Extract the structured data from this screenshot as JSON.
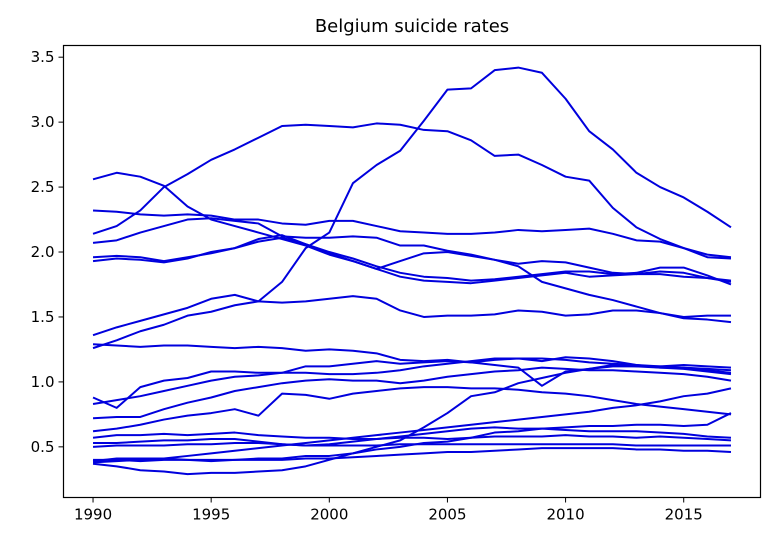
{
  "chart_data": {
    "type": "line",
    "title": "Belgium suicide rates",
    "xlabel": "",
    "ylabel": "",
    "xlim": [
      1988.75,
      2018.25
    ],
    "ylim": [
      0.11,
      3.59
    ],
    "grid": false,
    "legend": "none",
    "line_color": "#0000dd",
    "x_ticks": [
      1990,
      1995,
      2000,
      2005,
      2010,
      2015
    ],
    "x_tick_labels": [
      "1990",
      "1995",
      "2000",
      "2005",
      "2010",
      "2015"
    ],
    "y_ticks": [
      0.5,
      1.0,
      1.5,
      2.0,
      2.5,
      3.0,
      3.5
    ],
    "y_tick_labels": [
      "0.5",
      "1.0",
      "1.5",
      "2.0",
      "2.5",
      "3.0",
      "3.5"
    ],
    "x": [
      1990,
      1991,
      1992,
      1993,
      1994,
      1995,
      1996,
      1997,
      1998,
      1999,
      2000,
      2001,
      2002,
      2003,
      2004,
      2005,
      2006,
      2007,
      2008,
      2009,
      2010,
      2011,
      2012,
      2013,
      2014,
      2015,
      2016,
      2017
    ],
    "series": [
      {
        "values": [
          0.38,
          0.39,
          0.4,
          0.41,
          0.43,
          0.45,
          0.47,
          0.49,
          0.51,
          0.53,
          0.55,
          0.57,
          0.59,
          0.61,
          0.63,
          0.65,
          0.67,
          0.69,
          0.71,
          0.73,
          0.75,
          0.77,
          0.8,
          0.82,
          0.85,
          0.89,
          0.91,
          0.95
        ]
      },
      {
        "values": [
          0.37,
          0.35,
          0.32,
          0.31,
          0.29,
          0.3,
          0.3,
          0.31,
          0.32,
          0.35,
          0.4,
          0.45,
          0.5,
          0.55,
          0.65,
          0.76,
          0.89,
          0.92,
          0.99,
          1.03,
          1.07,
          1.1,
          1.13,
          1.12,
          1.11,
          1.1,
          1.08,
          1.06
        ]
      },
      {
        "values": [
          0.57,
          0.59,
          0.59,
          0.6,
          0.59,
          0.6,
          0.61,
          0.59,
          0.58,
          0.57,
          0.57,
          0.56,
          0.56,
          0.57,
          0.57,
          0.56,
          0.57,
          0.58,
          0.58,
          0.58,
          0.59,
          0.58,
          0.58,
          0.57,
          0.58,
          0.57,
          0.56,
          0.55
        ]
      },
      {
        "values": [
          0.5,
          0.51,
          0.51,
          0.51,
          0.52,
          0.52,
          0.53,
          0.53,
          0.52,
          0.51,
          0.51,
          0.51,
          0.51,
          0.52,
          0.52,
          0.52,
          0.52,
          0.52,
          0.52,
          0.52,
          0.52,
          0.52,
          0.52,
          0.51,
          0.51,
          0.51,
          0.51,
          0.51
        ]
      },
      {
        "values": [
          0.53,
          0.53,
          0.54,
          0.55,
          0.55,
          0.56,
          0.56,
          0.54,
          0.52,
          0.51,
          0.52,
          0.54,
          0.56,
          0.58,
          0.6,
          0.62,
          0.64,
          0.65,
          0.64,
          0.64,
          0.63,
          0.62,
          0.62,
          0.62,
          0.61,
          0.6,
          0.58,
          0.57
        ]
      },
      {
        "values": [
          0.4,
          0.4,
          0.39,
          0.4,
          0.4,
          0.4,
          0.4,
          0.4,
          0.4,
          0.41,
          0.41,
          0.42,
          0.43,
          0.44,
          0.45,
          0.46,
          0.46,
          0.47,
          0.48,
          0.49,
          0.49,
          0.49,
          0.49,
          0.48,
          0.48,
          0.47,
          0.47,
          0.46
        ]
      },
      {
        "values": [
          0.39,
          0.41,
          0.41,
          0.41,
          0.4,
          0.39,
          0.4,
          0.41,
          0.41,
          0.43,
          0.43,
          0.45,
          0.48,
          0.5,
          0.53,
          0.54,
          0.57,
          0.61,
          0.62,
          0.64,
          0.65,
          0.66,
          0.66,
          0.67,
          0.67,
          0.66,
          0.67,
          0.76
        ]
      },
      {
        "values": [
          0.62,
          0.64,
          0.67,
          0.71,
          0.74,
          0.76,
          0.79,
          0.74,
          0.91,
          0.9,
          0.87,
          0.91,
          0.93,
          0.95,
          0.96,
          0.96,
          0.95,
          0.95,
          0.94,
          0.92,
          0.91,
          0.89,
          0.86,
          0.83,
          0.81,
          0.79,
          0.77,
          0.75
        ]
      },
      {
        "values": [
          0.72,
          0.73,
          0.73,
          0.79,
          0.84,
          0.88,
          0.93,
          0.96,
          0.99,
          1.01,
          1.02,
          1.01,
          1.01,
          0.99,
          1.01,
          1.04,
          1.06,
          1.08,
          1.09,
          1.11,
          1.1,
          1.09,
          1.09,
          1.08,
          1.07,
          1.06,
          1.04,
          1.01
        ]
      },
      {
        "values": [
          0.88,
          0.8,
          0.96,
          1.01,
          1.03,
          1.08,
          1.08,
          1.07,
          1.07,
          1.12,
          1.12,
          1.14,
          1.16,
          1.14,
          1.15,
          1.16,
          1.15,
          1.13,
          1.11,
          0.97,
          1.08,
          1.1,
          1.12,
          1.12,
          1.12,
          1.13,
          1.12,
          1.11
        ]
      },
      {
        "values": [
          0.83,
          0.86,
          0.89,
          0.93,
          0.97,
          1.01,
          1.04,
          1.05,
          1.07,
          1.07,
          1.06,
          1.06,
          1.07,
          1.09,
          1.12,
          1.14,
          1.16,
          1.18,
          1.18,
          1.18,
          1.17,
          1.15,
          1.14,
          1.13,
          1.12,
          1.11,
          1.09,
          1.07
        ]
      },
      {
        "values": [
          1.29,
          1.28,
          1.27,
          1.28,
          1.28,
          1.27,
          1.26,
          1.27,
          1.26,
          1.24,
          1.25,
          1.24,
          1.22,
          1.17,
          1.16,
          1.17,
          1.15,
          1.17,
          1.18,
          1.16,
          1.19,
          1.18,
          1.16,
          1.13,
          1.11,
          1.11,
          1.1,
          1.09
        ]
      },
      {
        "values": [
          1.36,
          1.42,
          1.47,
          1.52,
          1.57,
          1.64,
          1.67,
          1.62,
          1.61,
          1.62,
          1.64,
          1.66,
          1.64,
          1.55,
          1.5,
          1.51,
          1.51,
          1.52,
          1.55,
          1.54,
          1.51,
          1.52,
          1.55,
          1.55,
          1.53,
          1.49,
          1.48,
          1.46
        ]
      },
      {
        "values": [
          1.26,
          1.32,
          1.39,
          1.44,
          1.51,
          1.54,
          1.59,
          1.62,
          1.77,
          2.03,
          2.15,
          2.53,
          2.67,
          2.78,
          3.01,
          3.25,
          3.26,
          3.4,
          3.42,
          3.38,
          3.18,
          2.93,
          2.79,
          2.61,
          2.5,
          2.42,
          2.31,
          2.19
        ]
      },
      {
        "values": [
          1.93,
          1.95,
          1.94,
          1.92,
          1.95,
          2.0,
          2.03,
          2.08,
          2.11,
          2.06,
          1.99,
          1.93,
          1.87,
          1.81,
          1.78,
          1.77,
          1.76,
          1.78,
          1.8,
          1.82,
          1.84,
          1.81,
          1.82,
          1.83,
          1.85,
          1.84,
          1.8,
          1.77
        ]
      },
      {
        "values": [
          1.96,
          1.97,
          1.96,
          1.93,
          1.96,
          1.99,
          2.03,
          2.1,
          2.13,
          2.06,
          2.0,
          1.95,
          1.89,
          1.84,
          1.81,
          1.8,
          1.78,
          1.79,
          1.81,
          1.83,
          1.85,
          1.85,
          1.83,
          1.84,
          1.88,
          1.88,
          1.82,
          1.75
        ]
      },
      {
        "values": [
          2.07,
          2.09,
          2.15,
          2.2,
          2.25,
          2.26,
          2.24,
          2.22,
          2.12,
          2.11,
          2.11,
          2.12,
          2.11,
          2.05,
          2.05,
          2.01,
          1.98,
          1.94,
          1.89,
          1.77,
          1.72,
          1.67,
          1.63,
          1.58,
          1.53,
          1.5,
          1.51,
          1.51
        ]
      },
      {
        "values": [
          2.14,
          2.2,
          2.32,
          2.5,
          2.6,
          2.71,
          2.79,
          2.88,
          2.97,
          2.98,
          2.97,
          2.96,
          2.99,
          2.98,
          2.94,
          2.93,
          2.86,
          2.74,
          2.75,
          2.67,
          2.58,
          2.55,
          2.34,
          2.19,
          2.1,
          2.03,
          1.96,
          1.95
        ]
      },
      {
        "values": [
          2.32,
          2.31,
          2.29,
          2.28,
          2.29,
          2.28,
          2.25,
          2.25,
          2.22,
          2.21,
          2.24,
          2.24,
          2.2,
          2.16,
          2.15,
          2.14,
          2.14,
          2.15,
          2.17,
          2.16,
          2.17,
          2.18,
          2.14,
          2.09,
          2.08,
          2.03,
          1.98,
          1.96
        ]
      },
      {
        "values": [
          2.56,
          2.61,
          2.58,
          2.51,
          2.35,
          2.25,
          2.2,
          2.15,
          2.1,
          2.05,
          1.98,
          1.93,
          1.87,
          1.93,
          1.99,
          2.0,
          1.97,
          1.94,
          1.91,
          1.93,
          1.92,
          1.88,
          1.84,
          1.83,
          1.83,
          1.81,
          1.8,
          1.78
        ]
      }
    ]
  }
}
